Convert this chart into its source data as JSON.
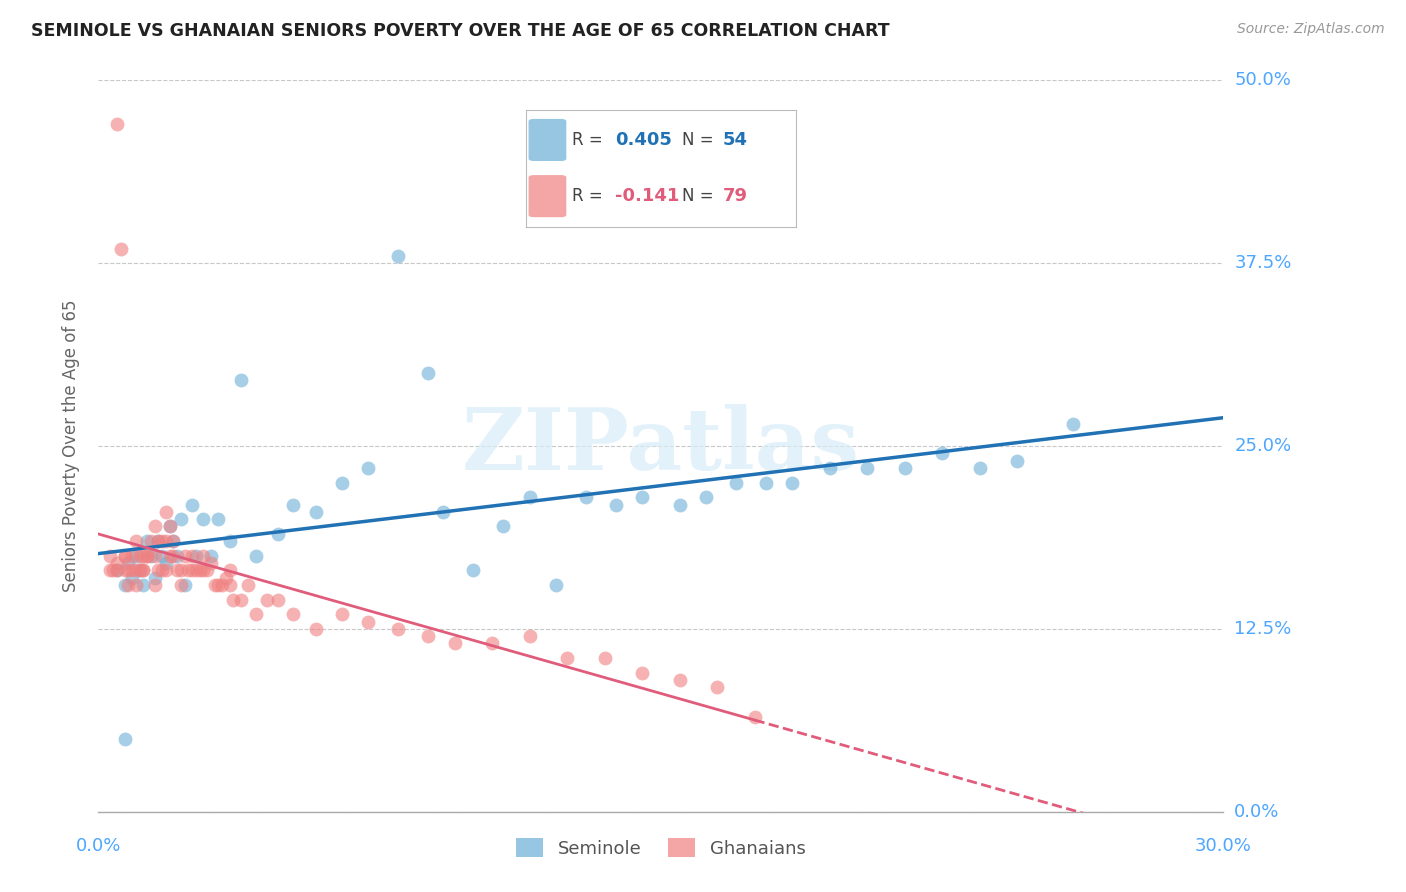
{
  "title": "SEMINOLE VS GHANAIAN SENIORS POVERTY OVER THE AGE OF 65 CORRELATION CHART",
  "source": "Source: ZipAtlas.com",
  "ylabel_label": "Seniors Poverty Over the Age of 65",
  "xlim": [
    0.0,
    0.3
  ],
  "ylim": [
    0.0,
    0.5
  ],
  "ytick_labels": [
    "0.0%",
    "12.5%",
    "25.0%",
    "37.5%",
    "50.0%"
  ],
  "yticks": [
    0.0,
    0.125,
    0.25,
    0.375,
    0.5
  ],
  "seminole_R": 0.405,
  "seminole_N": 54,
  "ghanaian_R": -0.141,
  "ghanaian_N": 79,
  "seminole_color": "#6baed6",
  "ghanaian_color": "#f08080",
  "trend_seminole_color": "#2171b5",
  "trend_ghanaian_color": "#e05c7a",
  "watermark": "ZIPatlas",
  "background_color": "#ffffff",
  "grid_color": "#c8c8c8",
  "label_color": "#4da6ff",
  "seminole_x": [
    0.005,
    0.007,
    0.008,
    0.009,
    0.01,
    0.011,
    0.012,
    0.013,
    0.014,
    0.015,
    0.016,
    0.017,
    0.018,
    0.019,
    0.02,
    0.021,
    0.022,
    0.023,
    0.025,
    0.026,
    0.028,
    0.03,
    0.032,
    0.035,
    0.038,
    0.042,
    0.048,
    0.052,
    0.058,
    0.065,
    0.072,
    0.08,
    0.088,
    0.092,
    0.1,
    0.108,
    0.115,
    0.122,
    0.13,
    0.138,
    0.145,
    0.155,
    0.162,
    0.17,
    0.178,
    0.185,
    0.195,
    0.205,
    0.215,
    0.225,
    0.235,
    0.245,
    0.26,
    0.007
  ],
  "seminole_y": [
    0.165,
    0.155,
    0.17,
    0.16,
    0.175,
    0.165,
    0.155,
    0.185,
    0.175,
    0.16,
    0.185,
    0.175,
    0.17,
    0.195,
    0.185,
    0.175,
    0.2,
    0.155,
    0.21,
    0.175,
    0.2,
    0.175,
    0.2,
    0.185,
    0.295,
    0.175,
    0.19,
    0.21,
    0.205,
    0.225,
    0.235,
    0.38,
    0.3,
    0.205,
    0.165,
    0.195,
    0.215,
    0.155,
    0.215,
    0.21,
    0.215,
    0.21,
    0.215,
    0.225,
    0.225,
    0.225,
    0.235,
    0.235,
    0.235,
    0.245,
    0.235,
    0.24,
    0.265,
    0.05
  ],
  "ghanaian_x": [
    0.003,
    0.004,
    0.005,
    0.005,
    0.006,
    0.007,
    0.007,
    0.008,
    0.008,
    0.009,
    0.009,
    0.01,
    0.01,
    0.011,
    0.011,
    0.012,
    0.012,
    0.013,
    0.013,
    0.014,
    0.015,
    0.015,
    0.016,
    0.016,
    0.017,
    0.017,
    0.018,
    0.018,
    0.019,
    0.019,
    0.02,
    0.02,
    0.021,
    0.022,
    0.023,
    0.024,
    0.025,
    0.025,
    0.026,
    0.027,
    0.028,
    0.029,
    0.03,
    0.031,
    0.032,
    0.033,
    0.034,
    0.035,
    0.036,
    0.038,
    0.04,
    0.042,
    0.045,
    0.048,
    0.052,
    0.058,
    0.065,
    0.072,
    0.08,
    0.088,
    0.095,
    0.105,
    0.115,
    0.125,
    0.135,
    0.145,
    0.155,
    0.165,
    0.175,
    0.003,
    0.005,
    0.007,
    0.01,
    0.012,
    0.015,
    0.018,
    0.022,
    0.028,
    0.035
  ],
  "ghanaian_y": [
    0.175,
    0.165,
    0.47,
    0.17,
    0.385,
    0.165,
    0.175,
    0.155,
    0.165,
    0.165,
    0.175,
    0.165,
    0.185,
    0.175,
    0.165,
    0.175,
    0.165,
    0.175,
    0.175,
    0.185,
    0.195,
    0.175,
    0.185,
    0.165,
    0.185,
    0.165,
    0.205,
    0.185,
    0.195,
    0.175,
    0.185,
    0.175,
    0.165,
    0.165,
    0.175,
    0.165,
    0.175,
    0.165,
    0.165,
    0.165,
    0.175,
    0.165,
    0.17,
    0.155,
    0.155,
    0.155,
    0.16,
    0.165,
    0.145,
    0.145,
    0.155,
    0.135,
    0.145,
    0.145,
    0.135,
    0.125,
    0.135,
    0.13,
    0.125,
    0.12,
    0.115,
    0.115,
    0.12,
    0.105,
    0.105,
    0.095,
    0.09,
    0.085,
    0.065,
    0.165,
    0.165,
    0.175,
    0.155,
    0.165,
    0.155,
    0.165,
    0.155,
    0.165,
    0.155
  ]
}
